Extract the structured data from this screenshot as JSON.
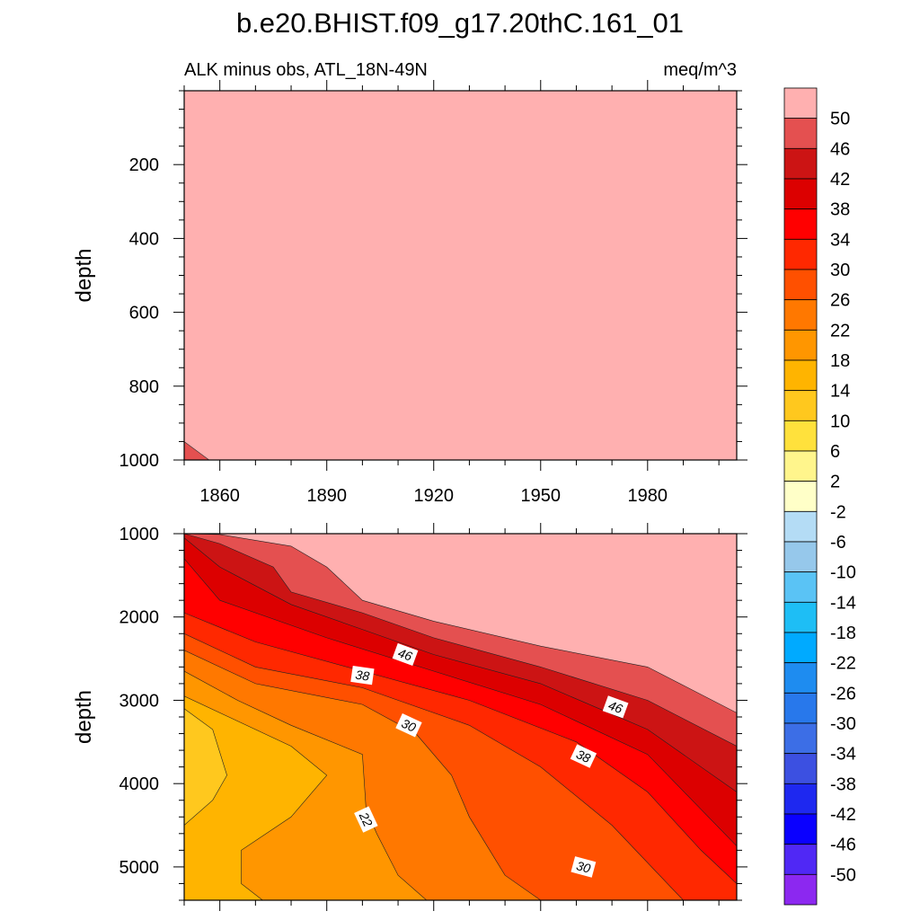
{
  "chart_data": {
    "type": "contour",
    "title": "b.e20.BHIST.f09_g17.20thC.161_01",
    "subtitle_left": "ALK minus obs, ATL_18N-49N",
    "subtitle_right": "meq/m^3",
    "x_range": [
      1850,
      2005
    ],
    "x_ticks": [
      "1860",
      "1890",
      "1920",
      "1950",
      "1980"
    ],
    "panels": [
      {
        "name": "upper",
        "ylabel": "depth",
        "y_range": [
          0,
          1000
        ],
        "y_ticks": [
          "200",
          "400",
          "600",
          "800",
          "1000"
        ],
        "fill_level": "> 50",
        "features": [
          {
            "level": "46 to 50",
            "region": [
              [
                1850,
                950
              ],
              [
                1850,
                1000
              ],
              [
                1857,
                1000
              ]
            ]
          }
        ]
      },
      {
        "name": "lower",
        "ylabel": "depth",
        "y_range": [
          1000,
          5400
        ],
        "y_ticks": [
          "1000",
          "2000",
          "3000",
          "4000",
          "5000"
        ],
        "contours": [
          {
            "level": 50,
            "points": [
              [
                1850,
                1000
              ],
              [
                1860,
                1010
              ],
              [
                1880,
                1150
              ],
              [
                1890,
                1400
              ],
              [
                1900,
                1800
              ],
              [
                1920,
                2050
              ],
              [
                1950,
                2350
              ],
              [
                1980,
                2600
              ],
              [
                2005,
                3150
              ]
            ]
          },
          {
            "level": 46,
            "points": [
              [
                1850,
                1000
              ],
              [
                1860,
                1120
              ],
              [
                1875,
                1400
              ],
              [
                1880,
                1700
              ],
              [
                1900,
                1950
              ],
              [
                1920,
                2250
              ],
              [
                1950,
                2600
              ],
              [
                1980,
                3000
              ],
              [
                2005,
                3550
              ]
            ]
          },
          {
            "level": 42,
            "points": [
              [
                1850,
                1050
              ],
              [
                1860,
                1400
              ],
              [
                1880,
                1850
              ],
              [
                1900,
                2150
              ],
              [
                1920,
                2450
              ],
              [
                1950,
                2800
              ],
              [
                1980,
                3350
              ],
              [
                2005,
                4100
              ]
            ]
          },
          {
            "level": 38,
            "points": [
              [
                1850,
                1300
              ],
              [
                1860,
                1800
              ],
              [
                1890,
                2250
              ],
              [
                1920,
                2650
              ],
              [
                1950,
                3050
              ],
              [
                1980,
                3650
              ],
              [
                2005,
                4750
              ]
            ]
          },
          {
            "level": 34,
            "points": [
              [
                1850,
                1950
              ],
              [
                1870,
                2300
              ],
              [
                1900,
                2650
              ],
              [
                1930,
                3000
              ],
              [
                1960,
                3500
              ],
              [
                1980,
                4100
              ],
              [
                1995,
                4800
              ],
              [
                2005,
                5200
              ]
            ]
          },
          {
            "level": 30,
            "points": [
              [
                1850,
                2200
              ],
              [
                1870,
                2600
              ],
              [
                1900,
                2850
              ],
              [
                1930,
                3300
              ],
              [
                1950,
                3800
              ],
              [
                1970,
                4500
              ],
              [
                1990,
                5400
              ]
            ]
          },
          {
            "level": 26,
            "points": [
              [
                1850,
                2400
              ],
              [
                1870,
                2800
              ],
              [
                1900,
                3050
              ],
              [
                1915,
                3400
              ],
              [
                1925,
                3900
              ],
              [
                1930,
                4400
              ],
              [
                1940,
                5100
              ],
              [
                1950,
                5400
              ]
            ]
          },
          {
            "level": 22,
            "points": [
              [
                1850,
                2650
              ],
              [
                1865,
                3000
              ],
              [
                1880,
                3300
              ],
              [
                1900,
                3650
              ],
              [
                1901,
                4300
              ],
              [
                1904,
                4600
              ],
              [
                1910,
                5100
              ],
              [
                1918,
                5400
              ]
            ]
          },
          {
            "level": 18,
            "points": [
              [
                1850,
                2950
              ],
              [
                1865,
                3250
              ],
              [
                1880,
                3550
              ],
              [
                1890,
                3900
              ],
              [
                1880,
                4400
              ],
              [
                1866,
                4800
              ],
              [
                1866,
                5200
              ],
              [
                1872,
                5400
              ]
            ]
          },
          {
            "level": 14,
            "points": [
              [
                1850,
                3100
              ],
              [
                1858,
                3350
              ],
              [
                1862,
                3900
              ],
              [
                1858,
                4200
              ],
              [
                1850,
                4500
              ]
            ]
          }
        ],
        "labels": [
          {
            "text": "46",
            "x": 1912,
            "y": 2450,
            "rot": 20
          },
          {
            "text": "38",
            "x": 1900,
            "y": 2700,
            "rot": 8
          },
          {
            "text": "30",
            "x": 1913,
            "y": 3300,
            "rot": 25
          },
          {
            "text": "46",
            "x": 1971,
            "y": 3080,
            "rot": 20
          },
          {
            "text": "38",
            "x": 1962,
            "y": 3670,
            "rot": 25
          },
          {
            "text": "22",
            "x": 1901,
            "y": 4430,
            "rot": 65
          },
          {
            "text": "30",
            "x": 1962,
            "y": 5000,
            "rot": 15
          }
        ]
      }
    ],
    "colorbar": {
      "labels": [
        "50",
        "46",
        "42",
        "38",
        "34",
        "30",
        "26",
        "22",
        "18",
        "14",
        "10",
        "6",
        "2",
        "-2",
        "-6",
        "-10",
        "-14",
        "-18",
        "-22",
        "-26",
        "-30",
        "-34",
        "-38",
        "-42",
        "-46",
        "-50"
      ],
      "colors": [
        "#ffb0b0",
        "#e45050",
        "#cc1414",
        "#dc0000",
        "#ff0000",
        "#ff2800",
        "#ff5000",
        "#ff7800",
        "#ff9600",
        "#ffb400",
        "#ffc81e",
        "#ffe13c",
        "#fff58c",
        "#ffffc8",
        "#b4dcf5",
        "#96c8eb",
        "#5ac3f5",
        "#1ebef5",
        "#00aaff",
        "#1e8cf0",
        "#2878eb",
        "#3c6ee6",
        "#3c50e1",
        "#1e28f0",
        "#0a00ff",
        "#5028f5",
        "#8c28f0"
      ]
    }
  }
}
